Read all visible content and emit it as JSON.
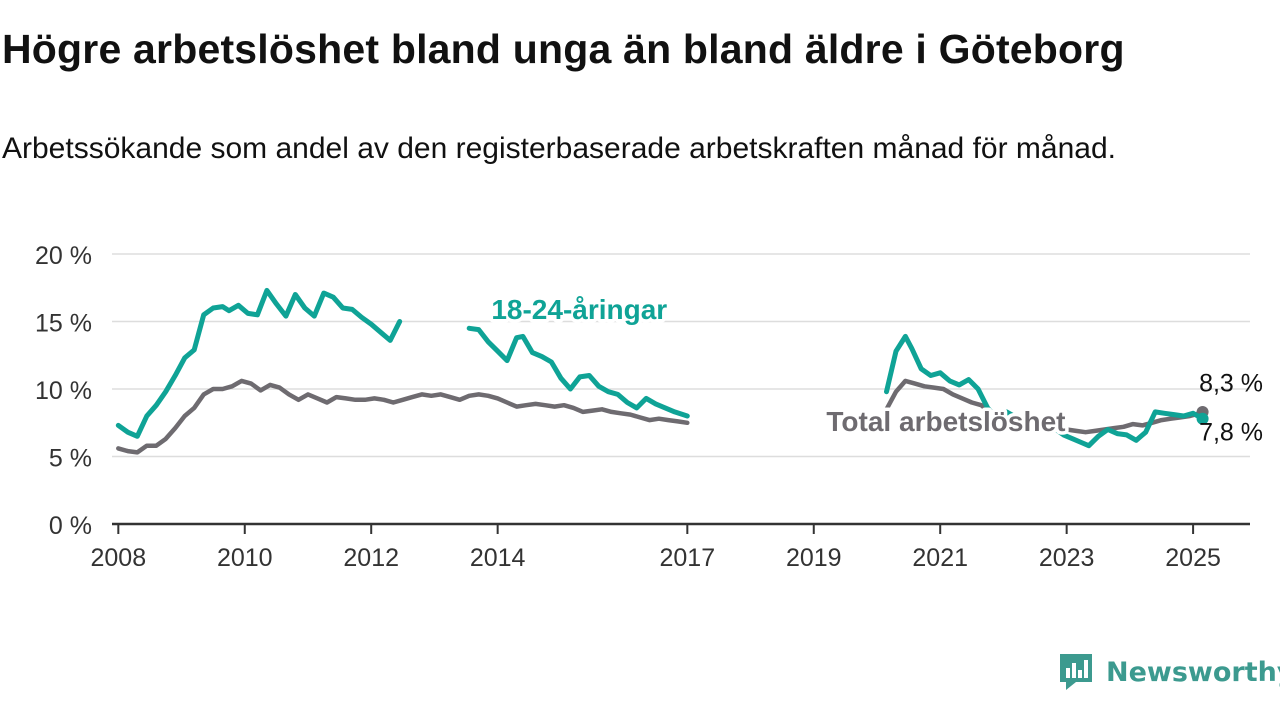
{
  "title": "Högre arbetslöshet bland unga än bland äldre i Göteborg",
  "subtitle": "Arbetssökande som andel av den registerbaserade arbetskraften månad för månad.",
  "brand": {
    "name": "Newsworthy",
    "icon": "newsworthy-logo-icon"
  },
  "colors": {
    "youth": "#0fa396",
    "total": "#6e6b70",
    "grid": "#dddddd",
    "axis": "#333333"
  },
  "chart_data": {
    "type": "line",
    "ylim": [
      0,
      20
    ],
    "yticks": [
      0,
      5,
      10,
      15,
      20
    ],
    "ytick_labels": [
      "0 %",
      "5 %",
      "10 %",
      "15 %",
      "20 %"
    ],
    "xlim": [
      2007.9,
      2025.9
    ],
    "xticks": [
      2008,
      2010,
      2012,
      2014,
      2017,
      2019,
      2021,
      2023,
      2025
    ],
    "xtick_labels": [
      "2008",
      "2010",
      "2012",
      "2014",
      "2017",
      "2019",
      "2021",
      "2023",
      "2025"
    ],
    "grid": true,
    "series": [
      {
        "name": "18-24-åringar",
        "key": "youth",
        "segments": [
          {
            "x": [
              2008.0,
              2008.15,
              2008.3,
              2008.45,
              2008.6,
              2008.75,
              2008.9,
              2009.05,
              2009.2,
              2009.35,
              2009.5,
              2009.65,
              2009.75,
              2009.9,
              2010.05,
              2010.2,
              2010.35,
              2010.5,
              2010.65,
              2010.8,
              2010.95,
              2011.1,
              2011.25,
              2011.4,
              2011.55,
              2011.7,
              2011.85,
              2012.0,
              2012.15,
              2012.3,
              2012.45
            ],
            "y": [
              7.3,
              6.8,
              6.5,
              8.0,
              8.8,
              9.8,
              11.0,
              12.3,
              12.9,
              15.5,
              16.0,
              16.1,
              15.8,
              16.2,
              15.6,
              15.5,
              17.3,
              16.3,
              15.4,
              17.0,
              16.0,
              15.4,
              17.1,
              16.8,
              16.0,
              15.9,
              15.3,
              14.8,
              14.2,
              13.6,
              15.0
            ]
          },
          {
            "x": [
              2013.55,
              2013.7,
              2013.85,
              2014.0,
              2014.15,
              2014.3,
              2014.4,
              2014.55,
              2014.7,
              2014.85,
              2015.0,
              2015.15,
              2015.3,
              2015.45,
              2015.6,
              2015.75,
              2015.9,
              2016.05,
              2016.2,
              2016.35,
              2016.5,
              2016.65,
              2016.8,
              2017.0
            ],
            "y": [
              14.5,
              14.4,
              13.5,
              12.8,
              12.1,
              13.8,
              13.9,
              12.7,
              12.4,
              12.0,
              10.8,
              10.0,
              10.9,
              11.0,
              10.2,
              9.8,
              9.6,
              9.0,
              8.6,
              9.3,
              8.9,
              8.6,
              8.3,
              8.0
            ]
          },
          {
            "x": [
              2020.15,
              2020.3,
              2020.45,
              2020.55,
              2020.7,
              2020.85,
              2021.0,
              2021.15,
              2021.3,
              2021.45,
              2021.6,
              2021.75,
              2021.9,
              2022.05,
              2022.2,
              2022.35,
              2022.5,
              2022.65,
              2022.8,
              2022.95,
              2023.1,
              2023.25,
              2023.35,
              2023.5,
              2023.65,
              2023.8,
              2023.95,
              2024.1,
              2024.25,
              2024.4,
              2024.55,
              2024.7,
              2024.85,
              2025.0,
              2025.15
            ],
            "y": [
              9.8,
              12.8,
              13.9,
              13.0,
              11.5,
              11.0,
              11.2,
              10.6,
              10.3,
              10.7,
              10.0,
              8.6,
              7.8,
              8.3,
              7.9,
              7.3,
              7.5,
              7.6,
              7.1,
              6.6,
              6.3,
              6.0,
              5.8,
              6.5,
              7.0,
              6.7,
              6.6,
              6.2,
              6.8,
              8.3,
              8.2,
              8.1,
              8.0,
              8.2,
              7.8
            ]
          }
        ]
      },
      {
        "name": "Total arbetslöshet",
        "key": "total",
        "segments": [
          {
            "x": [
              2008.0,
              2008.15,
              2008.3,
              2008.45,
              2008.6,
              2008.75,
              2008.9,
              2009.05,
              2009.2,
              2009.35,
              2009.5,
              2009.65,
              2009.8,
              2009.95,
              2010.1,
              2010.25,
              2010.4,
              2010.55,
              2010.7,
              2010.85,
              2011.0,
              2011.15,
              2011.3,
              2011.45,
              2011.6,
              2011.75,
              2011.9,
              2012.05,
              2012.2,
              2012.35,
              2012.5,
              2012.65,
              2012.8,
              2012.95,
              2013.1,
              2013.25,
              2013.4,
              2013.55,
              2013.7,
              2013.85,
              2014.0,
              2014.15,
              2014.3,
              2014.45,
              2014.6,
              2014.75,
              2014.9,
              2015.05,
              2015.2,
              2015.35,
              2015.5,
              2015.65,
              2015.8,
              2015.95,
              2016.1,
              2016.25,
              2016.4,
              2016.55,
              2016.7,
              2016.85,
              2017.0
            ],
            "y": [
              5.6,
              5.4,
              5.3,
              5.8,
              5.8,
              6.3,
              7.1,
              8.0,
              8.6,
              9.6,
              10.0,
              10.0,
              10.2,
              10.6,
              10.4,
              9.9,
              10.3,
              10.1,
              9.6,
              9.2,
              9.6,
              9.3,
              9.0,
              9.4,
              9.3,
              9.2,
              9.2,
              9.3,
              9.2,
              9.0,
              9.2,
              9.4,
              9.6,
              9.5,
              9.6,
              9.4,
              9.2,
              9.5,
              9.6,
              9.5,
              9.3,
              9.0,
              8.7,
              8.8,
              8.9,
              8.8,
              8.7,
              8.8,
              8.6,
              8.3,
              8.4,
              8.5,
              8.3,
              8.2,
              8.1,
              7.9,
              7.7,
              7.8,
              7.7,
              7.6,
              7.5
            ]
          },
          {
            "x": [
              2020.15,
              2020.3,
              2020.45,
              2020.6,
              2020.75,
              2020.9,
              2021.05,
              2021.2,
              2021.35,
              2021.5,
              2021.65,
              2021.8,
              2021.95,
              2022.1,
              2022.25,
              2022.4,
              2022.55,
              2022.7,
              2022.85,
              2023.0,
              2023.15,
              2023.3,
              2023.45,
              2023.6,
              2023.75,
              2023.9,
              2024.05,
              2024.2,
              2024.35,
              2024.5,
              2024.65,
              2024.8,
              2024.95,
              2025.1,
              2025.15
            ],
            "y": [
              8.5,
              9.8,
              10.6,
              10.4,
              10.2,
              10.1,
              10.0,
              9.6,
              9.3,
              9.0,
              8.8,
              8.2,
              7.8,
              7.6,
              7.5,
              7.3,
              7.4,
              7.3,
              7.2,
              7.0,
              6.9,
              6.8,
              6.9,
              7.0,
              7.1,
              7.2,
              7.4,
              7.3,
              7.5,
              7.7,
              7.8,
              7.9,
              8.0,
              8.2,
              8.3
            ]
          }
        ]
      }
    ],
    "annotations": [
      {
        "key": "youth_label",
        "text": "18-24-åringar",
        "x": 2013.9,
        "y": 15.2
      },
      {
        "key": "total_label",
        "text": "Total arbetslöshet",
        "x": 2019.2,
        "y": 6.9
      },
      {
        "key": "total_end",
        "text": "8,3 %",
        "x": 2025.6,
        "y": 9.8
      },
      {
        "key": "youth_end",
        "text": "7,8 %",
        "x": 2025.6,
        "y": 6.2
      }
    ]
  }
}
